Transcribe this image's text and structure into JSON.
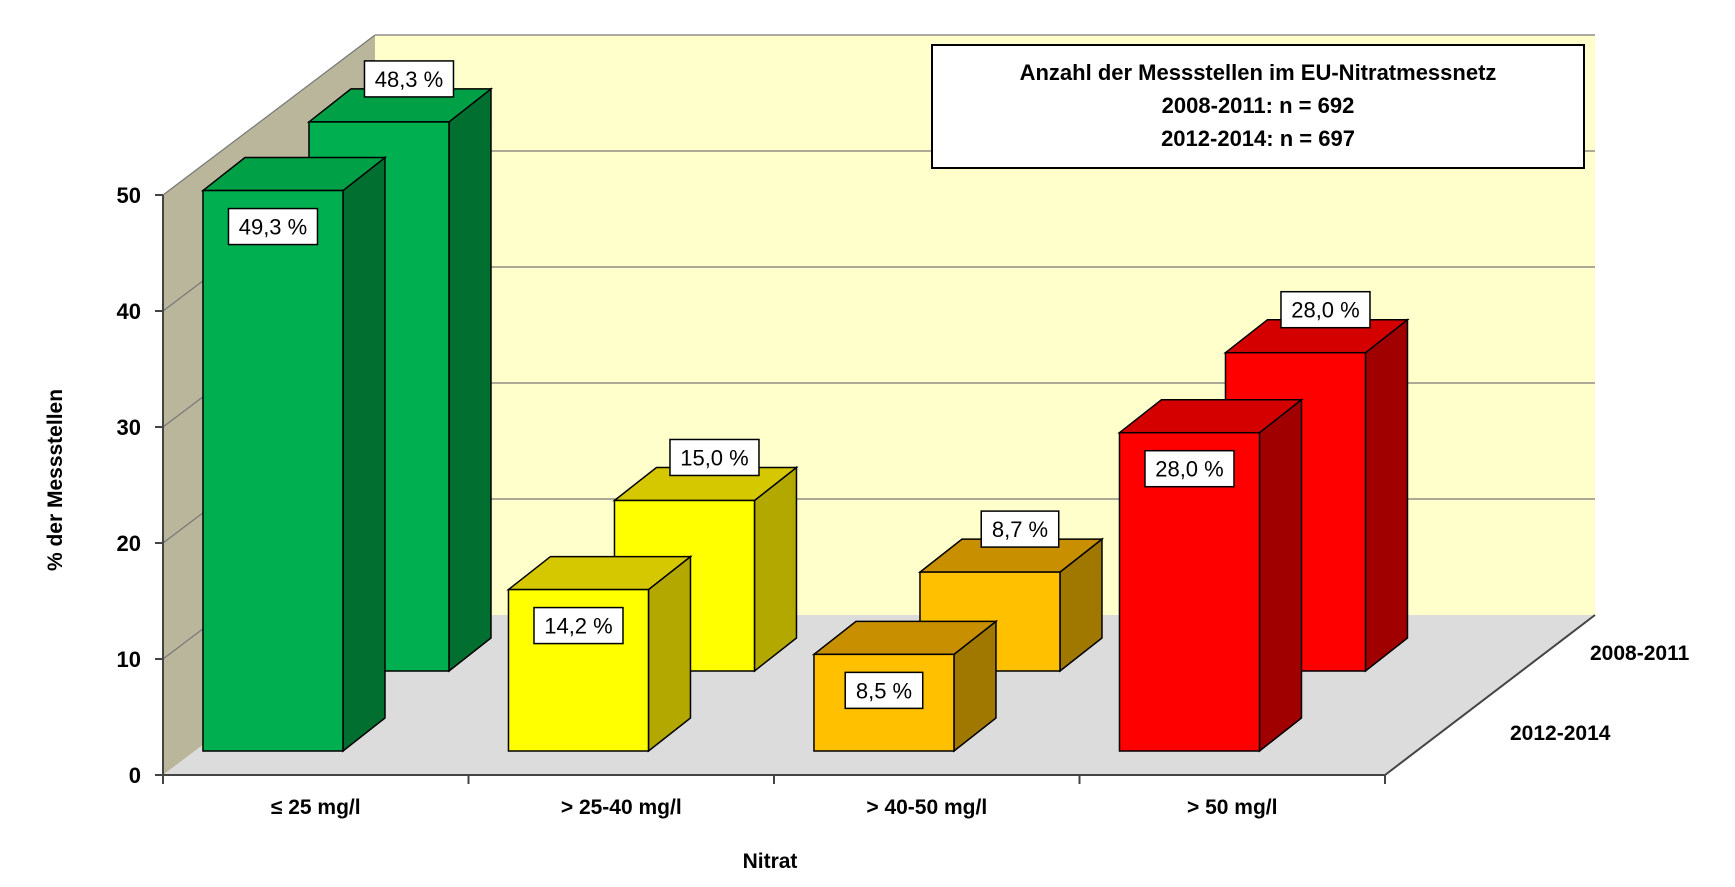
{
  "chart_data": {
    "type": "bar",
    "title": "",
    "xlabel": "Nitrat",
    "ylabel": "% der Messstellen",
    "ylim": [
      0,
      50
    ],
    "yticks": [
      "0",
      "10",
      "20",
      "30",
      "40",
      "50"
    ],
    "categories": [
      "≤ 25 mg/l",
      "> 25-40 mg/l",
      "> 40-50 mg/l",
      "> 50 mg/l"
    ],
    "series": [
      {
        "name": "2012-2014",
        "values": [
          49.3,
          14.2,
          8.5,
          28.0
        ],
        "labels": [
          "49,3 %",
          "14,2 %",
          "8,5 %",
          "28,0 %"
        ]
      },
      {
        "name": "2008-2011",
        "values": [
          48.3,
          15.0,
          8.7,
          28.0
        ],
        "labels": [
          "48,3 %",
          "15,0 %",
          "8,7 %",
          "28,0 %"
        ]
      }
    ],
    "depth_labels": [
      "2008-2011",
      "2012-2014"
    ],
    "legend": {
      "position": "top-right",
      "lines": [
        "Anzahl der Messstellen im EU-Nitratmessnetz",
        "2008-2011: n = 692",
        "2012-2014: n = 697"
      ]
    },
    "colors": [
      {
        "front": "#00b050",
        "side": "#006f30",
        "top": "#00a046"
      },
      {
        "front": "#ffff00",
        "side": "#b2a800",
        "top": "#d6c800"
      },
      {
        "front": "#ffc000",
        "side": "#a07800",
        "top": "#c89000"
      },
      {
        "front": "#ff0000",
        "side": "#a00000",
        "top": "#d40000"
      }
    ],
    "background": {
      "wall": "#ffffcc",
      "side_wall": "#b9b69c",
      "floor": "#dcdcdc"
    }
  }
}
